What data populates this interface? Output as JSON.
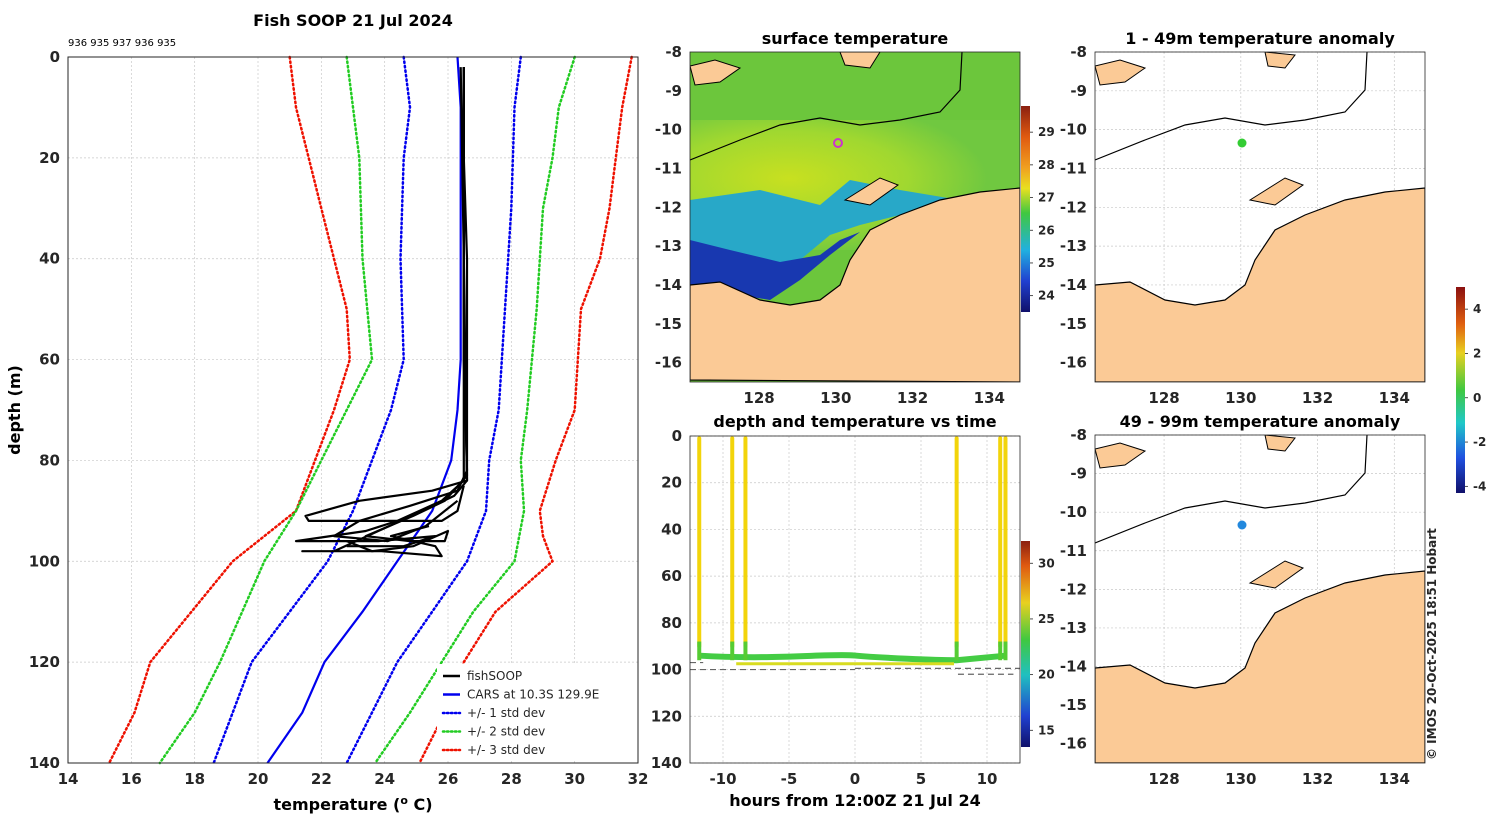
{
  "chart_data": [
    {
      "id": "profile",
      "type": "line",
      "title": "Fish SOOP 21 Jul 2024",
      "cast_ids": "936 935 937 936 935",
      "xlabel": "temperature (",
      "xlabel_sup": "o",
      "xlabel_end": " C)",
      "ylabel": "depth (m)",
      "xlim": [
        14,
        32
      ],
      "ylim": [
        0,
        140
      ],
      "xticks": [
        14,
        16,
        18,
        20,
        22,
        24,
        26,
        28,
        30,
        32
      ],
      "yticks": [
        0,
        20,
        40,
        60,
        80,
        100,
        120,
        140
      ],
      "legend": [
        {
          "label": "fishSOOP",
          "color": "#000000",
          "style": "solid"
        },
        {
          "label": "CARS at 10.3S 129.9E",
          "color": "#0000ee",
          "style": "solid"
        },
        {
          "label": "+/- 1 std dev",
          "color": "#0000ee",
          "style": "dotted"
        },
        {
          "label": "+/- 2 std dev",
          "color": "#22cc22",
          "style": "dotted"
        },
        {
          "label": "+/- 3 std dev",
          "color": "#ee1100",
          "style": "dotted"
        }
      ],
      "cars_mean": [
        [
          26.3,
          0
        ],
        [
          26.4,
          10
        ],
        [
          26.4,
          30
        ],
        [
          26.4,
          50
        ],
        [
          26.4,
          60
        ],
        [
          26.3,
          70
        ],
        [
          26.1,
          80
        ],
        [
          25.5,
          90
        ],
        [
          24.4,
          100
        ],
        [
          23.3,
          110
        ],
        [
          22.1,
          120
        ],
        [
          21.4,
          130
        ],
        [
          20.3,
          140
        ]
      ],
      "std1_low": [
        [
          24.6,
          0
        ],
        [
          24.8,
          10
        ],
        [
          24.6,
          20
        ],
        [
          24.5,
          40
        ],
        [
          24.6,
          60
        ],
        [
          24.2,
          70
        ],
        [
          23.6,
          80
        ],
        [
          23.0,
          90
        ],
        [
          22.2,
          100
        ],
        [
          21.0,
          110
        ],
        [
          19.8,
          120
        ],
        [
          19.2,
          130
        ],
        [
          18.6,
          140
        ]
      ],
      "std1_high": [
        [
          28.3,
          0
        ],
        [
          28.1,
          10
        ],
        [
          28.0,
          30
        ],
        [
          27.8,
          50
        ],
        [
          27.6,
          70
        ],
        [
          27.3,
          80
        ],
        [
          27.2,
          90
        ],
        [
          26.6,
          100
        ],
        [
          25.5,
          110
        ],
        [
          24.4,
          120
        ],
        [
          23.6,
          130
        ],
        [
          22.8,
          140
        ]
      ],
      "std2_low": [
        [
          22.8,
          0
        ],
        [
          23.0,
          10
        ],
        [
          23.2,
          20
        ],
        [
          23.3,
          40
        ],
        [
          23.6,
          60
        ],
        [
          22.8,
          70
        ],
        [
          22.0,
          80
        ],
        [
          21.2,
          90
        ],
        [
          20.2,
          100
        ],
        [
          19.5,
          110
        ],
        [
          18.8,
          120
        ],
        [
          18.0,
          130
        ],
        [
          16.9,
          140
        ]
      ],
      "std2_high": [
        [
          30.0,
          0
        ],
        [
          29.5,
          10
        ],
        [
          29.3,
          20
        ],
        [
          29.0,
          30
        ],
        [
          28.8,
          50
        ],
        [
          28.5,
          70
        ],
        [
          28.3,
          80
        ],
        [
          28.4,
          90
        ],
        [
          28.1,
          100
        ],
        [
          26.8,
          110
        ],
        [
          25.8,
          120
        ],
        [
          24.8,
          130
        ],
        [
          23.7,
          140
        ]
      ],
      "std3_low": [
        [
          21.0,
          0
        ],
        [
          21.2,
          10
        ],
        [
          21.6,
          20
        ],
        [
          22.0,
          30
        ],
        [
          22.8,
          50
        ],
        [
          22.9,
          60
        ],
        [
          22.4,
          70
        ],
        [
          21.8,
          80
        ],
        [
          21.2,
          90
        ],
        [
          19.2,
          100
        ],
        [
          17.9,
          110
        ],
        [
          16.6,
          120
        ],
        [
          16.1,
          130
        ],
        [
          15.3,
          140
        ]
      ],
      "std3_high": [
        [
          31.8,
          0
        ],
        [
          31.5,
          10
        ],
        [
          31.3,
          20
        ],
        [
          31.1,
          30
        ],
        [
          30.8,
          40
        ],
        [
          30.2,
          50
        ],
        [
          30.0,
          70
        ],
        [
          29.4,
          80
        ],
        [
          28.9,
          90
        ],
        [
          29.0,
          95
        ],
        [
          29.3,
          100
        ],
        [
          27.5,
          110
        ],
        [
          26.5,
          120
        ],
        [
          25.9,
          130
        ],
        [
          25.1,
          140
        ]
      ],
      "fishsoop_casts": [
        [
          [
            26.5,
            2
          ],
          [
            26.5,
            20
          ],
          [
            26.6,
            40
          ],
          [
            26.6,
            60
          ],
          [
            26.6,
            80
          ],
          [
            26.6,
            84
          ],
          [
            25.5,
            86
          ],
          [
            23.2,
            88
          ],
          [
            21.5,
            91
          ],
          [
            21.6,
            92
          ],
          [
            25.8,
            92
          ],
          [
            26.3,
            90
          ],
          [
            26.5,
            85
          ]
        ],
        [
          [
            26.5,
            2
          ],
          [
            26.5,
            30
          ],
          [
            26.5,
            60
          ],
          [
            26.6,
            82
          ],
          [
            26.3,
            86
          ],
          [
            24.8,
            89
          ],
          [
            23.2,
            92
          ],
          [
            22.4,
            95
          ],
          [
            24.1,
            96
          ],
          [
            25.3,
            93
          ],
          [
            26.3,
            88
          ]
        ],
        [
          [
            26.5,
            2
          ],
          [
            26.5,
            40
          ],
          [
            26.5,
            70
          ],
          [
            26.5,
            84
          ],
          [
            25.8,
            88
          ],
          [
            24.4,
            92
          ],
          [
            23.4,
            94
          ],
          [
            21.2,
            96
          ],
          [
            23.8,
            96
          ],
          [
            25.6,
            95
          ],
          [
            24.6,
            97
          ],
          [
            22.8,
            97
          ]
        ],
        [
          [
            26.5,
            2
          ],
          [
            26.5,
            50
          ],
          [
            26.6,
            84
          ],
          [
            26.2,
            87
          ],
          [
            25.2,
            90
          ],
          [
            23.8,
            94
          ],
          [
            22.4,
            98
          ],
          [
            21.4,
            98
          ],
          [
            23.9,
            98
          ],
          [
            25.8,
            99
          ],
          [
            25.6,
            97
          ],
          [
            24.2,
            95
          ],
          [
            25.4,
            93
          ]
        ],
        [
          [
            26.4,
            2
          ],
          [
            26.5,
            40
          ],
          [
            26.6,
            83
          ],
          [
            25.9,
            88
          ],
          [
            24.9,
            91
          ],
          [
            23.4,
            95
          ],
          [
            24.8,
            96
          ],
          [
            25.9,
            96
          ],
          [
            26.0,
            94
          ],
          [
            24.9,
            97
          ],
          [
            23.6,
            98
          ],
          [
            22.8,
            96
          ]
        ]
      ]
    },
    {
      "id": "sst_map",
      "type": "heatmap",
      "title": "surface temperature",
      "xlim": [
        126.2,
        134.8
      ],
      "ylim": [
        -16.5,
        -8
      ],
      "xticks": [
        128,
        130,
        132,
        134
      ],
      "yticks": [
        -8,
        -9,
        -10,
        -11,
        -12,
        -13,
        -14,
        -15,
        -16
      ],
      "marker": {
        "lon": 129.9,
        "lat": -10.3,
        "color": "#cc33cc"
      },
      "colorbar": {
        "ticks": [
          29,
          28,
          27,
          26,
          25,
          24
        ],
        "range": [
          23.5,
          29.8
        ]
      }
    },
    {
      "id": "depth_time",
      "type": "scatter",
      "title": "depth and temperature vs time",
      "xlabel": "hours from 12:00Z 21 Jul 24",
      "xlim": [
        -12.5,
        12.5
      ],
      "ylim": [
        0,
        140
      ],
      "xticks": [
        -10,
        -5,
        0,
        5,
        10
      ],
      "yticks": [
        0,
        20,
        40,
        60,
        80,
        100,
        120,
        140
      ],
      "casts_hours": [
        -11.8,
        -9.3,
        -8.3,
        7.7,
        11.0,
        11.4
      ],
      "colorbar": {
        "ticks": [
          30,
          25,
          20,
          15
        ],
        "range": [
          13.5,
          32
        ]
      }
    },
    {
      "id": "anom_shallow",
      "type": "heatmap",
      "title": "1 - 49m temperature anomaly",
      "xlim": [
        126.2,
        134.8
      ],
      "ylim": [
        -16.5,
        -8
      ],
      "xticks": [
        128,
        130,
        132,
        134
      ],
      "yticks": [
        -8,
        -9,
        -10,
        -11,
        -12,
        -13,
        -14,
        -15,
        -16
      ],
      "marker": {
        "lon": 129.9,
        "lat": -10.3,
        "color": "#33cc33"
      }
    },
    {
      "id": "anom_deep",
      "type": "heatmap",
      "title": "49 - 99m temperature anomaly",
      "xlim": [
        126.2,
        134.8
      ],
      "ylim": [
        -16.5,
        -8
      ],
      "xticks": [
        128,
        130,
        132,
        134
      ],
      "yticks": [
        -8,
        -9,
        -10,
        -11,
        -12,
        -13,
        -14,
        -15,
        -16
      ],
      "marker": {
        "lon": 129.9,
        "lat": -10.3,
        "color": "#2288dd"
      },
      "colorbar": {
        "ticks": [
          4,
          2,
          0,
          -2,
          -4
        ],
        "range": [
          -4.3,
          5
        ]
      }
    }
  ],
  "footer": "© IMOS 20-Oct-2025 18:51 Hobart"
}
